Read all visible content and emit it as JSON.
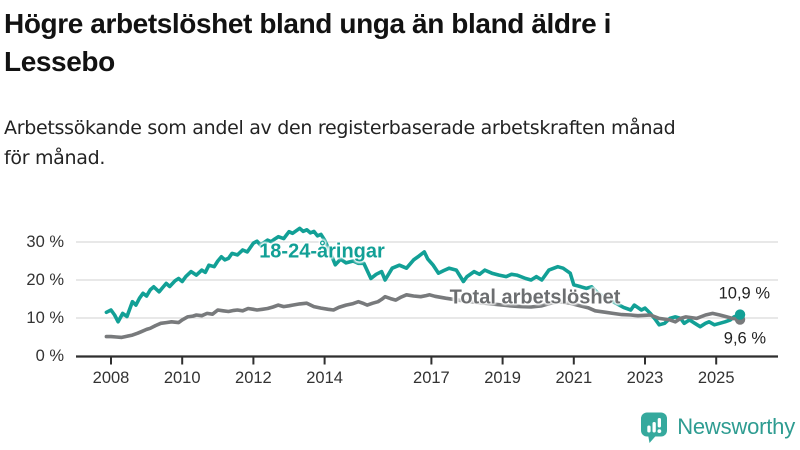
{
  "header": {
    "title_lines": [
      "Högre arbetslöshet bland unga än bland äldre i",
      "Lessebo"
    ],
    "subtitle_lines": [
      "Arbetssökande som andel av den registerbaserade arbetskraften månad",
      "för månad."
    ]
  },
  "footer": {
    "brand_name": "Newsworthy",
    "brand_icon": "newsworthy-bar-chart-bubble-icon",
    "brand_text_color": "#2E9C91",
    "brand_icon_color": "#35A99D"
  },
  "colors": {
    "youth_line": "#12A096",
    "total_line": "#787A7C",
    "total_label": "#6C6E70",
    "grid": "#D9D9D9",
    "axis": "#2F2F2F",
    "tick_text": "#333333"
  },
  "chart_data": {
    "type": "line",
    "title": "Högre arbetslöshet bland unga än bland äldre i Lessebo",
    "subtitle": "Arbetssökande som andel av den registerbaserade arbetskraften månad för månad.",
    "unit": "%",
    "frequency": "monthly",
    "legend_position": "inline-labels",
    "x_axis": {
      "range": [
        2007.8,
        2026.3
      ],
      "ticks": [
        2008,
        2010,
        2012,
        2014,
        2017,
        2019,
        2021,
        2023,
        2025
      ]
    },
    "y_axis": {
      "range": [
        0,
        35
      ],
      "grid": true,
      "ticks": [
        {
          "value": 0,
          "label": "0 %"
        },
        {
          "value": 10,
          "label": "10 %"
        },
        {
          "value": 20,
          "label": "20 %"
        },
        {
          "value": 30,
          "label": "30 %"
        }
      ]
    },
    "series": [
      {
        "name": "18-24-åringar",
        "color": "#12A096",
        "end_label": "10,9 %",
        "end_value": 10.9,
        "points": [
          [
            2007.87,
            11.5
          ],
          [
            2008.0,
            12.1
          ],
          [
            2008.1,
            10.8
          ],
          [
            2008.2,
            9.0
          ],
          [
            2008.33,
            11.2
          ],
          [
            2008.45,
            10.4
          ],
          [
            2008.6,
            14.3
          ],
          [
            2008.7,
            13.4
          ],
          [
            2008.8,
            15.2
          ],
          [
            2008.9,
            16.5
          ],
          [
            2009.0,
            15.8
          ],
          [
            2009.1,
            17.4
          ],
          [
            2009.2,
            18.2
          ],
          [
            2009.35,
            16.9
          ],
          [
            2009.45,
            18.0
          ],
          [
            2009.55,
            19.1
          ],
          [
            2009.65,
            18.3
          ],
          [
            2009.8,
            19.8
          ],
          [
            2009.9,
            20.4
          ],
          [
            2010.0,
            19.6
          ],
          [
            2010.1,
            20.9
          ],
          [
            2010.25,
            22.2
          ],
          [
            2010.4,
            21.3
          ],
          [
            2010.55,
            22.6
          ],
          [
            2010.65,
            22.0
          ],
          [
            2010.75,
            23.9
          ],
          [
            2010.9,
            23.5
          ],
          [
            2011.0,
            25.0
          ],
          [
            2011.1,
            26.1
          ],
          [
            2011.2,
            25.3
          ],
          [
            2011.3,
            25.7
          ],
          [
            2011.4,
            27.0
          ],
          [
            2011.55,
            26.6
          ],
          [
            2011.7,
            27.9
          ],
          [
            2011.83,
            27.4
          ],
          [
            2012.0,
            29.7
          ],
          [
            2012.1,
            30.2
          ],
          [
            2012.2,
            29.2
          ],
          [
            2012.4,
            30.5
          ],
          [
            2012.5,
            30.1
          ],
          [
            2012.6,
            30.8
          ],
          [
            2012.7,
            31.4
          ],
          [
            2012.85,
            30.9
          ],
          [
            2013.0,
            32.7
          ],
          [
            2013.1,
            32.3
          ],
          [
            2013.3,
            33.6
          ],
          [
            2013.4,
            32.8
          ],
          [
            2013.5,
            33.2
          ],
          [
            2013.6,
            32.4
          ],
          [
            2013.7,
            32.8
          ],
          [
            2013.8,
            31.6
          ],
          [
            2013.9,
            32.0
          ],
          [
            2014.0,
            30.5
          ],
          [
            2014.15,
            27.5
          ],
          [
            2014.3,
            24.0
          ],
          [
            2014.45,
            25.5
          ],
          [
            2014.6,
            24.5
          ],
          [
            2014.8,
            25.0
          ],
          [
            2014.95,
            24.4
          ],
          [
            2015.1,
            24.4
          ],
          [
            2015.3,
            20.4
          ],
          [
            2015.45,
            21.5
          ],
          [
            2015.6,
            22.2
          ],
          [
            2015.7,
            20.0
          ],
          [
            2015.9,
            23.1
          ],
          [
            2016.1,
            23.9
          ],
          [
            2016.3,
            23.1
          ],
          [
            2016.5,
            25.3
          ],
          [
            2016.65,
            26.3
          ],
          [
            2016.8,
            27.4
          ],
          [
            2016.9,
            25.5
          ],
          [
            2017.05,
            23.9
          ],
          [
            2017.2,
            21.8
          ],
          [
            2017.35,
            22.5
          ],
          [
            2017.5,
            23.1
          ],
          [
            2017.7,
            22.6
          ],
          [
            2017.9,
            19.6
          ],
          [
            2018.0,
            20.9
          ],
          [
            2018.2,
            22.2
          ],
          [
            2018.35,
            21.5
          ],
          [
            2018.5,
            22.6
          ],
          [
            2018.7,
            21.8
          ],
          [
            2018.9,
            21.3
          ],
          [
            2019.1,
            20.9
          ],
          [
            2019.25,
            21.5
          ],
          [
            2019.4,
            21.3
          ],
          [
            2019.65,
            20.4
          ],
          [
            2019.8,
            20.0
          ],
          [
            2019.95,
            20.9
          ],
          [
            2020.1,
            20.0
          ],
          [
            2020.3,
            22.6
          ],
          [
            2020.55,
            23.5
          ],
          [
            2020.7,
            23.1
          ],
          [
            2020.9,
            21.8
          ],
          [
            2021.0,
            18.7
          ],
          [
            2021.2,
            18.2
          ],
          [
            2021.35,
            17.8
          ],
          [
            2021.5,
            18.2
          ],
          [
            2021.65,
            16.8
          ],
          [
            2021.8,
            15.8
          ],
          [
            2022.0,
            14.8
          ],
          [
            2022.2,
            13.8
          ],
          [
            2022.4,
            12.8
          ],
          [
            2022.6,
            12.1
          ],
          [
            2022.7,
            13.4
          ],
          [
            2022.9,
            12.1
          ],
          [
            2023.0,
            12.6
          ],
          [
            2023.15,
            11.2
          ],
          [
            2023.3,
            9.5
          ],
          [
            2023.4,
            8.2
          ],
          [
            2023.55,
            8.6
          ],
          [
            2023.7,
            9.9
          ],
          [
            2023.85,
            10.3
          ],
          [
            2024.0,
            9.9
          ],
          [
            2024.1,
            8.6
          ],
          [
            2024.25,
            9.5
          ],
          [
            2024.4,
            8.6
          ],
          [
            2024.55,
            7.7
          ],
          [
            2024.7,
            8.6
          ],
          [
            2024.8,
            9.0
          ],
          [
            2024.95,
            8.2
          ],
          [
            2025.1,
            8.6
          ],
          [
            2025.25,
            9.0
          ],
          [
            2025.4,
            9.5
          ],
          [
            2025.5,
            10.3
          ],
          [
            2025.67,
            10.9
          ]
        ]
      },
      {
        "name": "Total arbetslöshet",
        "color": "#787A7C",
        "end_label": "9,6 %",
        "end_value": 9.6,
        "points": [
          [
            2007.87,
            5.1
          ],
          [
            2008.0,
            5.1
          ],
          [
            2008.15,
            5.0
          ],
          [
            2008.3,
            4.9
          ],
          [
            2008.45,
            5.2
          ],
          [
            2008.6,
            5.5
          ],
          [
            2008.75,
            6.0
          ],
          [
            2008.85,
            6.4
          ],
          [
            2009.0,
            7.0
          ],
          [
            2009.1,
            7.3
          ],
          [
            2009.25,
            8.0
          ],
          [
            2009.4,
            8.6
          ],
          [
            2009.55,
            8.8
          ],
          [
            2009.7,
            9.0
          ],
          [
            2009.9,
            8.8
          ],
          [
            2010.0,
            9.5
          ],
          [
            2010.15,
            10.3
          ],
          [
            2010.3,
            10.5
          ],
          [
            2010.4,
            10.8
          ],
          [
            2010.55,
            10.6
          ],
          [
            2010.7,
            11.2
          ],
          [
            2010.85,
            11.0
          ],
          [
            2011.0,
            12.1
          ],
          [
            2011.15,
            11.9
          ],
          [
            2011.3,
            11.7
          ],
          [
            2011.45,
            12.0
          ],
          [
            2011.55,
            12.1
          ],
          [
            2011.7,
            11.9
          ],
          [
            2011.85,
            12.5
          ],
          [
            2012.0,
            12.3
          ],
          [
            2012.1,
            12.1
          ],
          [
            2012.25,
            12.3
          ],
          [
            2012.4,
            12.5
          ],
          [
            2012.55,
            12.9
          ],
          [
            2012.7,
            13.4
          ],
          [
            2012.85,
            13.0
          ],
          [
            2013.0,
            13.2
          ],
          [
            2013.1,
            13.4
          ],
          [
            2013.3,
            13.7
          ],
          [
            2013.5,
            13.9
          ],
          [
            2013.7,
            13.0
          ],
          [
            2013.9,
            12.6
          ],
          [
            2014.1,
            12.3
          ],
          [
            2014.25,
            12.1
          ],
          [
            2014.4,
            12.8
          ],
          [
            2014.6,
            13.4
          ],
          [
            2014.8,
            13.8
          ],
          [
            2014.95,
            14.3
          ],
          [
            2015.1,
            13.8
          ],
          [
            2015.2,
            13.4
          ],
          [
            2015.35,
            13.9
          ],
          [
            2015.5,
            14.3
          ],
          [
            2015.6,
            14.9
          ],
          [
            2015.7,
            15.6
          ],
          [
            2015.85,
            15.1
          ],
          [
            2016.0,
            14.7
          ],
          [
            2016.15,
            15.5
          ],
          [
            2016.3,
            16.1
          ],
          [
            2016.5,
            15.8
          ],
          [
            2016.7,
            15.6
          ],
          [
            2016.85,
            15.9
          ],
          [
            2016.95,
            16.1
          ],
          [
            2017.1,
            15.7
          ],
          [
            2017.4,
            15.2
          ],
          [
            2017.7,
            14.8
          ],
          [
            2018.0,
            14.4
          ],
          [
            2018.3,
            14.1
          ],
          [
            2018.6,
            13.8
          ],
          [
            2018.9,
            13.5
          ],
          [
            2019.2,
            13.2
          ],
          [
            2019.5,
            13.0
          ],
          [
            2019.8,
            12.9
          ],
          [
            2020.1,
            13.2
          ],
          [
            2020.4,
            14.0
          ],
          [
            2020.6,
            14.3
          ],
          [
            2020.9,
            13.9
          ],
          [
            2021.1,
            13.4
          ],
          [
            2021.4,
            12.7
          ],
          [
            2021.6,
            11.9
          ],
          [
            2021.9,
            11.5
          ],
          [
            2022.1,
            11.2
          ],
          [
            2022.35,
            10.9
          ],
          [
            2022.6,
            10.8
          ],
          [
            2022.8,
            10.6
          ],
          [
            2023.0,
            10.7
          ],
          [
            2023.15,
            10.8
          ],
          [
            2023.4,
            9.9
          ],
          [
            2023.7,
            9.5
          ],
          [
            2023.85,
            9.0
          ],
          [
            2024.0,
            9.9
          ],
          [
            2024.15,
            10.3
          ],
          [
            2024.45,
            9.9
          ],
          [
            2024.7,
            10.8
          ],
          [
            2024.9,
            11.2
          ],
          [
            2025.1,
            10.8
          ],
          [
            2025.3,
            10.3
          ],
          [
            2025.45,
            9.9
          ],
          [
            2025.67,
            9.6
          ]
        ]
      }
    ]
  }
}
